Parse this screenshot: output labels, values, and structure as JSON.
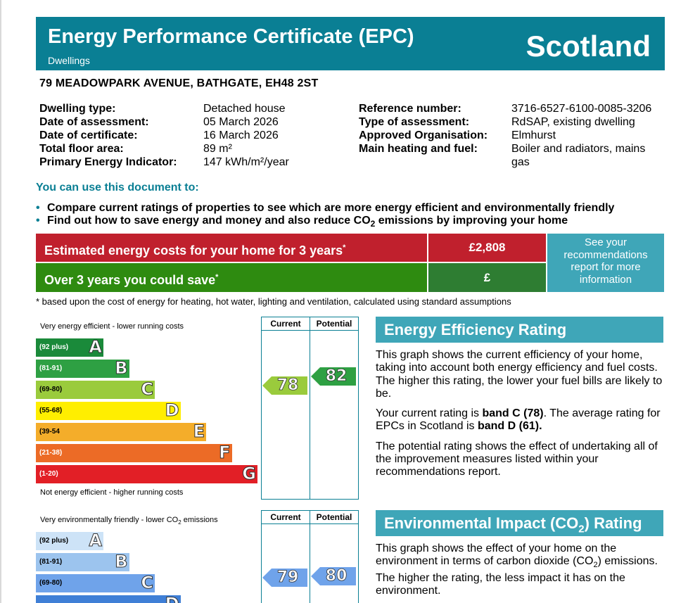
{
  "header": {
    "title": "Energy Performance Certificate (EPC)",
    "subtitle": "Dwellings",
    "region": "Scotland"
  },
  "address": "79 MEADOWPARK AVENUE, BATHGATE, EH48 2ST",
  "details_left": [
    {
      "label": "Dwelling type:",
      "value": "Detached house"
    },
    {
      "label": "Date of assessment:",
      "value": "05 March 2026"
    },
    {
      "label": "Date of certificate:",
      "value": "16 March 2026"
    },
    {
      "label": "Total floor area:",
      "value": "89 m²"
    },
    {
      "label": "Primary Energy Indicator:",
      "value": "147 kWh/m²/year"
    }
  ],
  "details_right": [
    {
      "label": "Reference number:",
      "value": "3716-6527-6100-0085-3206"
    },
    {
      "label": "Type of assessment:",
      "value": "RdSAP, existing dwelling"
    },
    {
      "label": "Approved Organisation:",
      "value": "Elmhurst"
    },
    {
      "label": "Main heating and fuel:",
      "value": "Boiler and radiators, mains gas"
    }
  ],
  "use_heading": "You can use this document to:",
  "bullets": {
    "b1": "Compare current ratings of properties to see which are more energy efficient and environmentally friendly",
    "b2_pre": "Find out how to save energy and money and also reduce CO",
    "b2_sub": "2",
    "b2_post": " emissions by improving your home"
  },
  "costs": {
    "estimated_label": "Estimated energy costs for your home for 3 years",
    "estimated_mark": "*",
    "estimated_value": "£2,808",
    "save_label": "Over 3 years you could save",
    "save_mark": "*",
    "save_value": "£",
    "recommendations_link": "See your recommendations report for more information"
  },
  "footnote": "* based upon the cost of energy for heating, hot water, lighting and ventilation, calculated using standard assumptions",
  "energy_rating": {
    "title": "Energy Efficiency Rating",
    "col_current": "Current",
    "col_potential": "Potential",
    "top_caption": "Very energy efficient - lower running costs",
    "bottom_caption": "Not energy efficient - higher running costs",
    "bands": [
      {
        "range": "(92 plus)",
        "letter": "A",
        "color": "#1a8a3a"
      },
      {
        "range": "(81-91)",
        "letter": "B",
        "color": "#2ea043"
      },
      {
        "range": "(69-80)",
        "letter": "C",
        "color": "#9acb3c"
      },
      {
        "range": "(55-68)",
        "letter": "D",
        "color": "#ffee00"
      },
      {
        "range": "(39-54",
        "letter": "E",
        "color": "#f4ad2a"
      },
      {
        "range": "(21-38)",
        "letter": "F",
        "color": "#ec6b26"
      },
      {
        "range": "(1-20)",
        "letter": "G",
        "color": "#e21f26"
      }
    ],
    "current": 78,
    "current_color": "#9acb3c",
    "potential": 82,
    "potential_color": "#2ea043",
    "p1": "This graph shows the current efficiency of your home, taking into account both energy efficiency and fuel costs. The higher this rating, the lower your fuel bills are likely to be.",
    "p2_pre": "Your current rating is ",
    "p2_band": "band C (78)",
    "p2_mid": ". The average rating for EPCs in Scotland is ",
    "p2_avg": "band D (61).",
    "p3": "The potential rating shows the effect of undertaking all of the improvement measures listed within your recommendations report."
  },
  "environmental_rating": {
    "title_pre": "Environmental Impact (CO",
    "title_sub": "2",
    "title_post": ") Rating",
    "col_current": "Current",
    "col_potential": "Potential",
    "top_caption_pre": "Very environmentally friendly - lower CO",
    "top_caption_sub": "2",
    "top_caption_post": " emissions",
    "bands": [
      {
        "range": "(92 plus)",
        "letter": "A",
        "color": "#cde3f7"
      },
      {
        "range": "(81-91)",
        "letter": "B",
        "color": "#9cc4ee"
      },
      {
        "range": "(69-80)",
        "letter": "C",
        "color": "#6fa3ea"
      },
      {
        "range": "",
        "letter": "D",
        "color": "#3f7fd6"
      }
    ],
    "current": 79,
    "current_color": "#6fa3ea",
    "potential": 80,
    "potential_color": "#6fa3ea",
    "p1_pre": "This graph shows the effect of your home on the environment in terms of carbon dioxide (CO",
    "p1_sub": "2",
    "p1_post": ") emissions. The higher the rating, the less impact it has on the environment."
  }
}
